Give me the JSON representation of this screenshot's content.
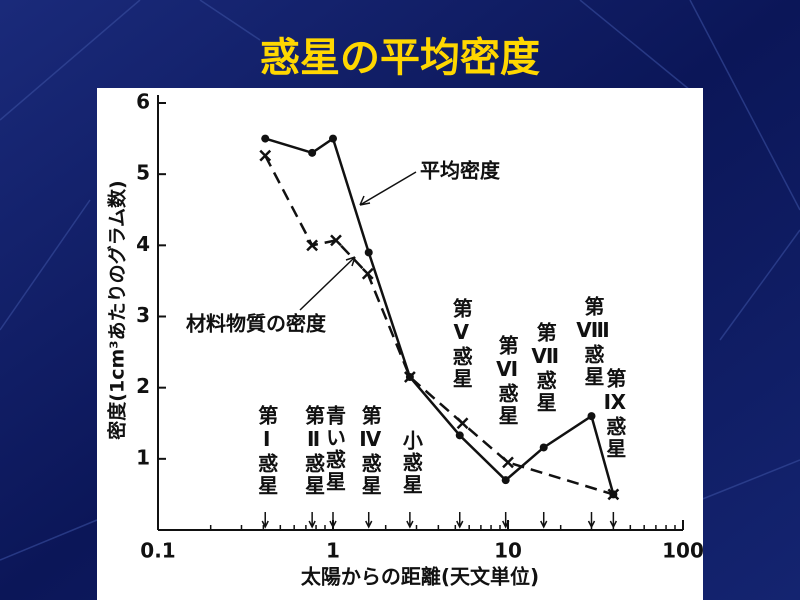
{
  "chart_data": {
    "type": "line",
    "title": "惑星の平均密度",
    "x_label": "太陽からの距離(天文単位)",
    "y_label": "密度(1cm³あたりのグラム数)",
    "xscale": "log",
    "xlim": [
      0.1,
      100
    ],
    "ylim": [
      0,
      6
    ],
    "xticks": [
      0.1,
      1,
      10,
      100
    ],
    "xminorticks": [
      0.2,
      0.3,
      0.4,
      0.5,
      0.6,
      0.7,
      0.8,
      0.9,
      2,
      3,
      4,
      5,
      6,
      7,
      8,
      9,
      20,
      30,
      40,
      50,
      60,
      70,
      80,
      90
    ],
    "yticks": [
      1,
      2,
      3,
      4,
      5,
      6
    ],
    "series": [
      {
        "name": "平均密度",
        "color": "#111111",
        "style": "solid",
        "marker": "circle",
        "x": [
          0.41,
          0.76,
          1.0,
          1.6,
          2.75,
          5.3,
          9.7,
          16,
          30,
          40
        ],
        "values": [
          5.5,
          5.3,
          5.5,
          3.9,
          2.15,
          1.33,
          0.7,
          1.16,
          1.6,
          0.5
        ]
      },
      {
        "name": "材料物質の密度",
        "color": "#111111",
        "style": "dashed",
        "marker": "cross",
        "x": [
          0.41,
          0.76,
          1.04,
          1.58,
          2.75,
          5.5,
          10,
          40
        ],
        "values": [
          5.26,
          4.0,
          4.07,
          3.6,
          2.15,
          1.5,
          0.95,
          0.5
        ]
      }
    ],
    "annotations": [
      {
        "text": "第Ⅰ惑星",
        "x": 0.41
      },
      {
        "text": "第Ⅱ惑星",
        "x": 0.76
      },
      {
        "text": "青い惑星",
        "x": 1.0
      },
      {
        "text": "第Ⅳ惑星",
        "x": 1.6
      },
      {
        "text": "小惑星",
        "x": 2.75
      },
      {
        "text": "第Ⅴ惑星",
        "x": 5.3
      },
      {
        "text": "第Ⅵ惑星",
        "x": 9.7
      },
      {
        "text": "第Ⅶ惑星",
        "x": 16
      },
      {
        "text": "第Ⅷ惑星",
        "x": 30
      },
      {
        "text": "第Ⅸ惑星",
        "x": 40
      }
    ]
  }
}
